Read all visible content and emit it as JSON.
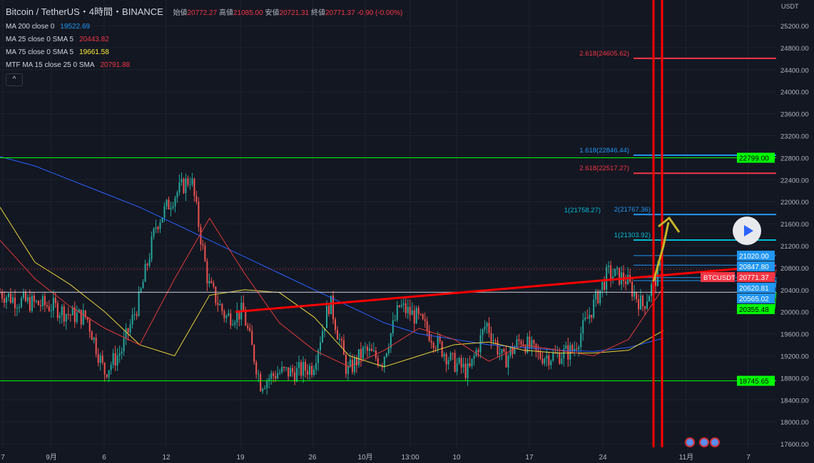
{
  "header": {
    "title": "Bitcoin / TetherUS・4時間・BINANCE",
    "open_label": "始値",
    "open": "20772.27",
    "high_label": "高値",
    "high": "21085.00",
    "low_label": "安値",
    "low": "20721.31",
    "close_label": "終値",
    "close": "20771.37",
    "change": "-0.90 (-0.00%)"
  },
  "indicators": [
    {
      "label": "MA 200 close 0",
      "value": "19522.69",
      "color": "#2196f3"
    },
    {
      "label": "MA 25 close 0 SMA 5",
      "value": "20443.82",
      "color": "#f23645"
    },
    {
      "label": "MA 75 close 0 SMA 5",
      "value": "19661.58",
      "color": "#ffeb3b"
    },
    {
      "label": "MTF MA 15 close 25 0 SMA",
      "value": "20791.88",
      "color": "#f23645"
    }
  ],
  "collapse_icon": "chevron-up-icon",
  "chart_data": {
    "type": "candlestick",
    "symbol": "BTCUSDT",
    "currency": "USDT",
    "ylim": [
      17400,
      25700
    ],
    "y_ticks": [
      17600,
      18000,
      18400,
      18800,
      19200,
      19600,
      20000,
      20400,
      20800,
      21200,
      21600,
      22000,
      22400,
      22800,
      23200,
      23600,
      24000,
      24400,
      24800,
      25200
    ],
    "x_ticks": [
      "7",
      "9月",
      "6",
      "12",
      "19",
      "26",
      "10月",
      "13:00",
      "10",
      "17",
      "24",
      "11月",
      "7"
    ],
    "close_path": [
      20350,
      20200,
      20150,
      20100,
      19950,
      19900,
      18900,
      19300,
      20200,
      21600,
      22100,
      22450,
      20500,
      19900,
      20000,
      18700,
      18900,
      18900,
      19000,
      20200,
      18900,
      19300,
      19100,
      20100,
      19900,
      19500,
      19100,
      18900,
      19800,
      19100,
      19500,
      19200,
      19200,
      19300,
      20000,
      20700,
      20600,
      20100,
      20771
    ],
    "ma200": [
      22820,
      22650,
      22400,
      22150,
      21900,
      21600,
      21300,
      21000,
      20700,
      20400,
      20100,
      19800,
      19600,
      19500,
      19400,
      19350,
      19300,
      19280,
      19350,
      19520
    ],
    "ma75": [
      21900,
      20900,
      20500,
      20000,
      19400,
      19200,
      20300,
      20400,
      20350,
      19900,
      19200,
      19000,
      19200,
      19400,
      19450,
      19300,
      19250,
      19250,
      19300,
      19660
    ],
    "ma25": [
      21300,
      20600,
      20100,
      19700,
      19400,
      20600,
      21700,
      20700,
      19800,
      19300,
      19000,
      19300,
      19700,
      19500,
      19100,
      19400,
      19300,
      19200,
      19500,
      20440
    ],
    "price_labels": [
      {
        "value": "21020.00",
        "color": "#2196f3"
      },
      {
        "value": "20847.80",
        "color": "#2196f3"
      },
      {
        "value": "20771.37",
        "color": "#f23645",
        "tag": "BTCUSDT"
      },
      {
        "value": "20620.81",
        "color": "#2196f3"
      },
      {
        "value": "20565.02",
        "color": "#2196f3"
      },
      {
        "value": "20355.48",
        "color": "#00ff00"
      },
      {
        "value": "22799.00",
        "color": "#00ff00"
      },
      {
        "value": "18745.65",
        "color": "#00ff00"
      }
    ],
    "fib_labels": [
      {
        "text": "2.618(24605.62)",
        "price": 24605.62,
        "color": "#f23645"
      },
      {
        "text": "1.618(22846.44)",
        "price": 22846.44,
        "color": "#2196f3"
      },
      {
        "text": "2.618(22517.27)",
        "price": 22517.27,
        "color": "#f23645"
      },
      {
        "text": "1(21758.27)",
        "price": 21758.27,
        "color": "#00bcd4"
      },
      {
        "text": "2(21767.36)",
        "price": 21767.36,
        "color": "#2196f3"
      },
      {
        "text": "1(21303.92)",
        "price": 21303.92,
        "color": "#00bcd4"
      }
    ],
    "trendline": {
      "from": 20000,
      "to": 20840,
      "color": "#ff0000"
    }
  }
}
